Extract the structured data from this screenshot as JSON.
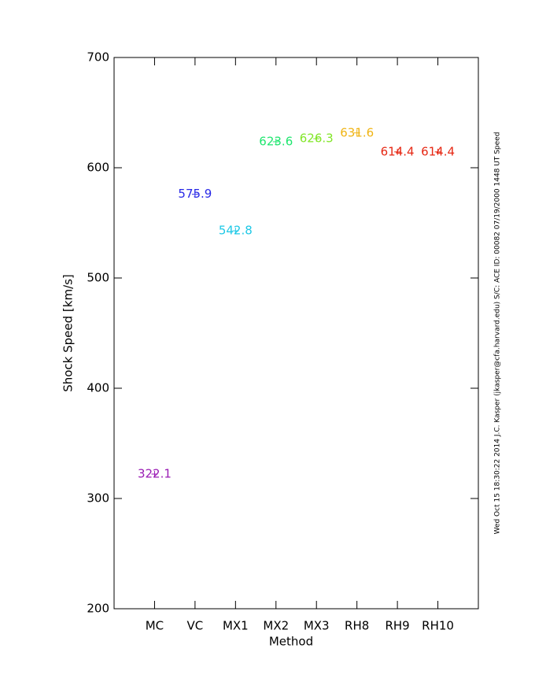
{
  "chart_data": {
    "type": "scatter",
    "xlabel": "Method",
    "ylabel": "Shock Speed [km/s]",
    "side_note": "Wed Oct 15 18:30:22 2014  J.C. Kasper (jkasper@cfa.harvard.edu)  S/C: ACE ID: 00082 07/19/2000  1448 UT Speed",
    "categories": [
      "MC",
      "VC",
      "MX1",
      "MX2",
      "MX3",
      "RH8",
      "RH9",
      "RH10"
    ],
    "values": [
      322.1,
      575.9,
      542.8,
      623.6,
      626.3,
      631.6,
      614.4,
      614.4
    ],
    "colors": [
      "#9a1cb4",
      "#2828e6",
      "#1ec8e6",
      "#1ee66e",
      "#82e628",
      "#f0b414",
      "#e62814",
      "#e62814"
    ],
    "ylim": [
      200,
      700
    ],
    "yticks": [
      200,
      300,
      400,
      500,
      600,
      700
    ]
  }
}
